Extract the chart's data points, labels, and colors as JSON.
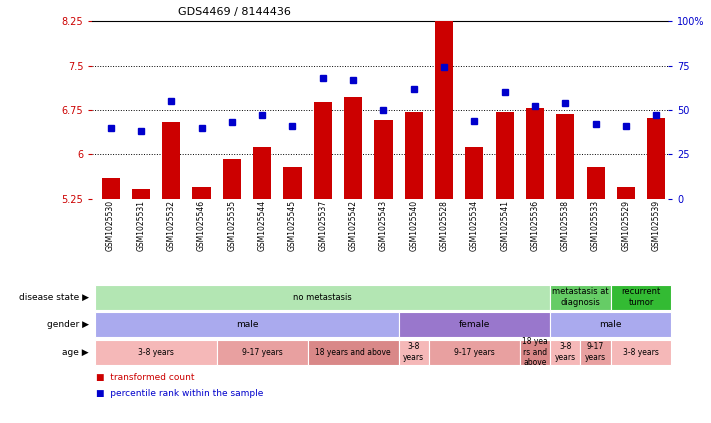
{
  "title": "GDS4469 / 8144436",
  "samples": [
    "GSM1025530",
    "GSM1025531",
    "GSM1025532",
    "GSM1025546",
    "GSM1025535",
    "GSM1025544",
    "GSM1025545",
    "GSM1025537",
    "GSM1025542",
    "GSM1025543",
    "GSM1025540",
    "GSM1025528",
    "GSM1025534",
    "GSM1025541",
    "GSM1025536",
    "GSM1025538",
    "GSM1025533",
    "GSM1025529",
    "GSM1025539"
  ],
  "bar_values": [
    5.6,
    5.42,
    6.55,
    5.45,
    5.92,
    6.12,
    5.78,
    6.88,
    6.97,
    6.58,
    6.72,
    8.38,
    6.12,
    6.72,
    6.78,
    6.68,
    5.78,
    5.45,
    6.62
  ],
  "dot_values": [
    40,
    38,
    55,
    40,
    43,
    47,
    41,
    68,
    67,
    50,
    62,
    74,
    44,
    60,
    52,
    54,
    42,
    41,
    47
  ],
  "ylim_left": [
    5.25,
    8.25
  ],
  "ylim_right": [
    0,
    100
  ],
  "yticks_left": [
    5.25,
    6.0,
    6.75,
    7.5,
    8.25
  ],
  "yticks_right": [
    0,
    25,
    50,
    75,
    100
  ],
  "ytick_labels_left": [
    "5.25",
    "6",
    "6.75",
    "7.5",
    "8.25"
  ],
  "ytick_labels_right": [
    "0",
    "25",
    "50",
    "75",
    "100%"
  ],
  "bar_color": "#cc0000",
  "dot_color": "#0000cc",
  "disease_state_row": {
    "segments": [
      {
        "label": "no metastasis",
        "start": 0,
        "end": 15,
        "color": "#b3e6b3"
      },
      {
        "label": "metastasis at\ndiagnosis",
        "start": 15,
        "end": 17,
        "color": "#66cc66"
      },
      {
        "label": "recurrent\ntumor",
        "start": 17,
        "end": 19,
        "color": "#33bb33"
      }
    ]
  },
  "gender_row": {
    "segments": [
      {
        "label": "male",
        "start": 0,
        "end": 10,
        "color": "#aaaaee"
      },
      {
        "label": "female",
        "start": 10,
        "end": 15,
        "color": "#9977cc"
      },
      {
        "label": "male",
        "start": 15,
        "end": 19,
        "color": "#aaaaee"
      }
    ]
  },
  "age_row": {
    "segments": [
      {
        "label": "3-8 years",
        "start": 0,
        "end": 4,
        "color": "#f5b8b8"
      },
      {
        "label": "9-17 years",
        "start": 4,
        "end": 7,
        "color": "#e8a0a0"
      },
      {
        "label": "18 years and above",
        "start": 7,
        "end": 10,
        "color": "#d98888"
      },
      {
        "label": "3-8\nyears",
        "start": 10,
        "end": 11,
        "color": "#f5b8b8"
      },
      {
        "label": "9-17 years",
        "start": 11,
        "end": 14,
        "color": "#e8a0a0"
      },
      {
        "label": "18 yea\nrs and\nabove",
        "start": 14,
        "end": 15,
        "color": "#d98888"
      },
      {
        "label": "3-8\nyears",
        "start": 15,
        "end": 16,
        "color": "#f5b8b8"
      },
      {
        "label": "9-17\nyears",
        "start": 16,
        "end": 17,
        "color": "#e8a0a0"
      },
      {
        "label": "3-8 years",
        "start": 17,
        "end": 19,
        "color": "#f5b8b8"
      }
    ]
  },
  "row_labels": [
    "disease state",
    "gender",
    "age"
  ],
  "legend": [
    {
      "label": "transformed count",
      "color": "#cc0000"
    },
    {
      "label": "percentile rank within the sample",
      "color": "#0000cc"
    }
  ],
  "xlim": [
    -0.6,
    18.4
  ],
  "bar_width": 0.6
}
